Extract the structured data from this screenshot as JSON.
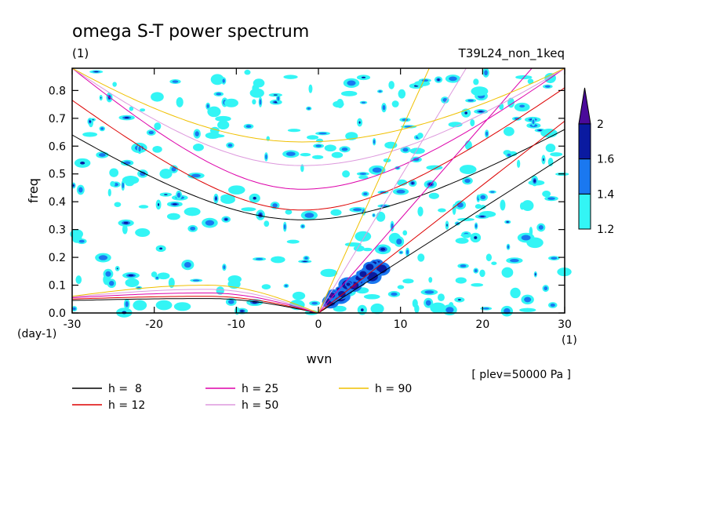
{
  "chart_data": {
    "type": "heatmap",
    "title": "omega S-T power spectrum",
    "subtitle_left": "(1)",
    "subtitle_right": "T39L24_non_1keq",
    "xlabel": "wvn",
    "ylabel": "freq",
    "x_units": "(1)",
    "y_units": "(day-1)",
    "xlim": [
      -30,
      30
    ],
    "ylim": [
      0,
      0.88
    ],
    "x_ticks": [
      "-30",
      "-20",
      "-10",
      "0",
      "10",
      "20",
      "30"
    ],
    "x_tick_values": [
      -30,
      -20,
      -10,
      0,
      10,
      20,
      30
    ],
    "y_ticks": [
      "0.0",
      "0.1",
      "0.2",
      "0.3",
      "0.4",
      "0.5",
      "0.6",
      "0.7",
      "0.8"
    ],
    "y_tick_values": [
      0,
      0.1,
      0.2,
      0.3,
      0.4,
      0.5,
      0.6,
      0.7,
      0.8
    ],
    "annotation": "[ plev=50000 Pa ]",
    "colorbar": {
      "levels": [
        1.2,
        1.4,
        1.6,
        2
      ],
      "labels": [
        "1.2",
        "1.4",
        "1.6",
        "2"
      ],
      "colors": [
        "#33f5f5",
        "#1a78f0",
        "#0a1aa0",
        "#4a0a9a"
      ]
    },
    "series": [
      {
        "name": "h =  8",
        "label": "8",
        "color": "#000000"
      },
      {
        "name": "h = 12",
        "label": "12",
        "color": "#dd0000"
      },
      {
        "name": "h = 25",
        "label": "25",
        "color": "#dd00aa"
      },
      {
        "name": "h = 50",
        "label": "50",
        "color": "#dd99dd"
      },
      {
        "name": "h = 90",
        "label": "90",
        "color": "#f0c000"
      }
    ],
    "dispersion_curves": [
      {
        "h": 8,
        "color": "#000000",
        "kelvin_y_at_x": [
          [
            0,
            0
          ],
          [
            30,
            0.565
          ]
        ],
        "ig_min": 0.335,
        "ig_y_left": 0.64,
        "ig_y_right": 0.66,
        "rossby_peak": 0.052,
        "rossby_left": 0.045
      },
      {
        "h": 12,
        "color": "#dd0000",
        "kelvin_y_at_x": [
          [
            0,
            0
          ],
          [
            30,
            0.69
          ]
        ],
        "ig_min": 0.37,
        "ig_y_left": 0.765,
        "ig_y_right": 0.81,
        "rossby_peak": 0.06,
        "rossby_left": 0.05
      },
      {
        "h": 25,
        "color": "#dd00aa",
        "kelvin_y_at_x": [
          [
            0,
            0
          ],
          [
            26,
            0.88
          ]
        ],
        "ig_min": 0.445,
        "ig_y_left": 0.88,
        "ig_y_right": 0.88,
        "rossby_peak": 0.072,
        "rossby_left": 0.055
      },
      {
        "h": 50,
        "color": "#dd99dd",
        "kelvin_y_at_x": [
          [
            0,
            0
          ],
          [
            18,
            0.88
          ]
        ],
        "ig_min": 0.53,
        "ig_y_left": 0.88,
        "ig_y_right": 0.88,
        "rossby_peak": 0.085,
        "rossby_left": 0.058
      },
      {
        "h": 90,
        "color": "#f0c000",
        "kelvin_y_at_x": [
          [
            0,
            0
          ],
          [
            13.5,
            0.88
          ]
        ],
        "ig_min": 0.615,
        "ig_y_left": 0.88,
        "ig_y_right": 0.88,
        "rossby_peak": 0.1,
        "rossby_left": 0.06
      }
    ],
    "grid": false,
    "legend_position": "bottom"
  }
}
